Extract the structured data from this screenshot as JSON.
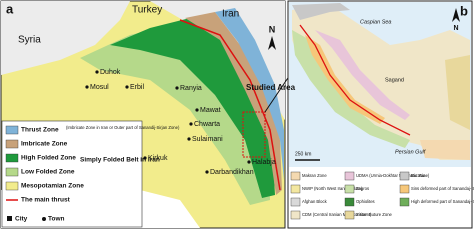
{
  "panel_a": {
    "label": "a",
    "countries": [
      "Syria",
      "Turkey",
      "Iran"
    ],
    "places": [
      "Duhok",
      "Mosul",
      "Erbil",
      "Ranyia",
      "Mawat",
      "Chwarta",
      "Sulaimani",
      "Kirkuk",
      "Halabja",
      "Darbandikhan"
    ],
    "studied_area": "Studied Area",
    "north": "N",
    "legend": {
      "items": [
        "Thrust Zone",
        "Imbricate Zone",
        "High Folded Zone",
        "Low Folded Zone",
        "Mesopotamian Zone",
        "The main thrust"
      ],
      "thrust_note": "(Imbricate Zone in Iran or Outer part of Sanandij-Sirjan Zone)",
      "folded_note": "Simply Folded Belt in Iran",
      "city": "City",
      "town": "Town"
    }
  },
  "panel_b": {
    "label": "b",
    "places": [
      "Caspian Sea",
      "Sagand",
      "Persian Gulf"
    ],
    "north": "N",
    "scale": "250 km",
    "legend": [
      "Makran Zone",
      "NWIP (North West Iranian Plate)",
      "Afghan Block",
      "CDM (Central Iranian Microcontinent)",
      "UDMA (Urmia-Dokhtar Magmatic Zone)",
      "Zagros",
      "Ophiolites",
      "Sistan Suture Zone",
      "Eurasia",
      "Sins deformed part of Sanandaj- Sirjan",
      "High deformed part of Sanandaj- Sirjan"
    ]
  }
}
